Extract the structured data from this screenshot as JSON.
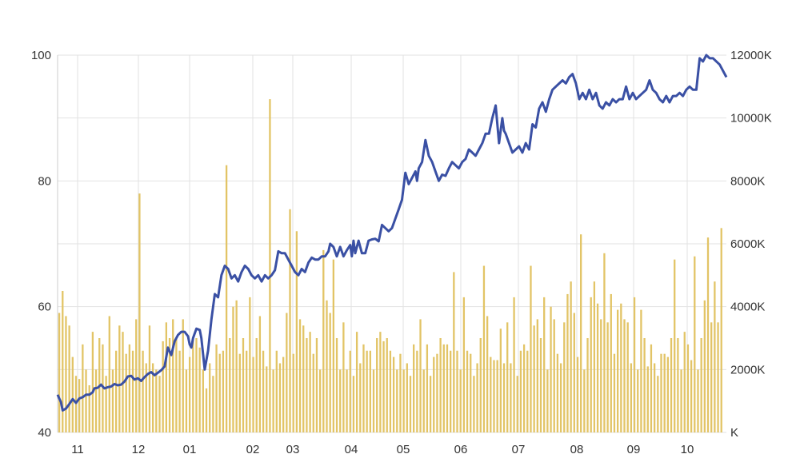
{
  "chart_data": {
    "type": "bar+line",
    "title": "",
    "xlabel": "",
    "x_ticks": [
      "11",
      "12",
      "01",
      "02",
      "03",
      "04",
      "05",
      "06",
      "07",
      "08",
      "09",
      "10"
    ],
    "y_left": {
      "ticks": [
        "40",
        "60",
        "80",
        "100"
      ],
      "range": [
        40,
        100
      ]
    },
    "y_right": {
      "ticks": [
        "K",
        "2000K",
        "4000K",
        "6000K",
        "8000K",
        "10000K",
        "12000K"
      ],
      "range": [
        0,
        12000
      ]
    },
    "grid": true,
    "colors": {
      "line": "#3a50a4",
      "bar": "#e2c466",
      "grid": "#e2e2e2"
    },
    "series": [
      {
        "kind": "line",
        "axis": "left",
        "points": [
          [
            0.0,
            46.0
          ],
          [
            0.1,
            44.8
          ],
          [
            0.15,
            43.5
          ],
          [
            0.25,
            43.8
          ],
          [
            0.35,
            44.5
          ],
          [
            0.45,
            45.3
          ],
          [
            0.55,
            44.7
          ],
          [
            0.65,
            45.4
          ],
          [
            0.75,
            45.6
          ],
          [
            0.85,
            46.0
          ],
          [
            0.95,
            46.0
          ],
          [
            1.05,
            46.4
          ],
          [
            1.1,
            47.0
          ],
          [
            1.2,
            47.1
          ],
          [
            1.3,
            47.6
          ],
          [
            1.4,
            47.0
          ],
          [
            1.5,
            47.2
          ],
          [
            1.6,
            47.3
          ],
          [
            1.7,
            47.7
          ],
          [
            1.8,
            47.5
          ],
          [
            1.9,
            47.6
          ],
          [
            2.0,
            48.1
          ],
          [
            2.1,
            48.9
          ],
          [
            2.2,
            49.0
          ],
          [
            2.3,
            48.4
          ],
          [
            2.4,
            48.6
          ],
          [
            2.5,
            48.2
          ],
          [
            2.6,
            48.8
          ],
          [
            2.7,
            49.3
          ],
          [
            2.8,
            49.6
          ],
          [
            2.9,
            49.1
          ],
          [
            3.0,
            49.5
          ],
          [
            3.1,
            49.9
          ],
          [
            3.2,
            50.5
          ],
          [
            3.3,
            53.5
          ],
          [
            3.4,
            52.3
          ],
          [
            3.5,
            54.5
          ],
          [
            3.6,
            55.5
          ],
          [
            3.7,
            56.0
          ],
          [
            3.8,
            56.0
          ],
          [
            3.9,
            55.3
          ],
          [
            3.95,
            54.0
          ],
          [
            4.0,
            53.5
          ],
          [
            4.05,
            55.0
          ],
          [
            4.15,
            56.5
          ],
          [
            4.25,
            56.3
          ],
          [
            4.3,
            55.0
          ],
          [
            4.4,
            50.0
          ],
          [
            4.5,
            53.0
          ],
          [
            4.6,
            58.0
          ],
          [
            4.7,
            62.0
          ],
          [
            4.8,
            61.5
          ],
          [
            4.9,
            65.0
          ],
          [
            5.0,
            66.5
          ],
          [
            5.1,
            66.0
          ],
          [
            5.2,
            64.5
          ],
          [
            5.3,
            65.0
          ],
          [
            5.4,
            64.0
          ],
          [
            5.5,
            65.5
          ],
          [
            5.6,
            66.5
          ],
          [
            5.7,
            66.0
          ],
          [
            5.8,
            65.0
          ],
          [
            5.9,
            64.5
          ],
          [
            6.0,
            65.0
          ],
          [
            6.1,
            64.0
          ],
          [
            6.2,
            65.0
          ],
          [
            6.3,
            64.5
          ],
          [
            6.4,
            65.0
          ],
          [
            6.5,
            65.8
          ],
          [
            6.6,
            68.8
          ],
          [
            6.7,
            68.5
          ],
          [
            6.8,
            68.5
          ],
          [
            6.9,
            67.5
          ],
          [
            7.0,
            66.5
          ],
          [
            7.1,
            65.5
          ],
          [
            7.2,
            65.0
          ],
          [
            7.3,
            66.0
          ],
          [
            7.4,
            65.5
          ],
          [
            7.5,
            67.0
          ],
          [
            7.6,
            67.8
          ],
          [
            7.7,
            67.5
          ],
          [
            7.8,
            67.5
          ],
          [
            7.9,
            68.0
          ],
          [
            8.0,
            68.0
          ],
          [
            8.1,
            68.8
          ],
          [
            8.15,
            70.0
          ],
          [
            8.25,
            69.5
          ],
          [
            8.35,
            68.0
          ],
          [
            8.45,
            69.5
          ],
          [
            8.55,
            68.0
          ],
          [
            8.65,
            69.0
          ],
          [
            8.75,
            69.8
          ],
          [
            8.8,
            68.0
          ],
          [
            8.85,
            70.5
          ],
          [
            8.9,
            68.5
          ],
          [
            9.0,
            70.5
          ],
          [
            9.1,
            68.5
          ],
          [
            9.2,
            68.5
          ],
          [
            9.3,
            70.5
          ],
          [
            9.4,
            70.7
          ],
          [
            9.5,
            70.8
          ],
          [
            9.6,
            70.4
          ],
          [
            9.7,
            73.0
          ],
          [
            9.8,
            72.5
          ],
          [
            9.9,
            72.0
          ],
          [
            10.0,
            72.5
          ],
          [
            10.1,
            74.0
          ],
          [
            10.2,
            75.5
          ],
          [
            10.3,
            77.0
          ],
          [
            10.4,
            81.3
          ],
          [
            10.5,
            79.5
          ],
          [
            10.6,
            80.5
          ],
          [
            10.7,
            81.5
          ],
          [
            10.75,
            80.0
          ],
          [
            10.8,
            82.0
          ],
          [
            10.9,
            83.0
          ],
          [
            11.0,
            86.5
          ],
          [
            11.1,
            84.0
          ],
          [
            11.2,
            83.0
          ],
          [
            11.3,
            81.5
          ],
          [
            11.4,
            80.0
          ],
          [
            11.5,
            81.0
          ],
          [
            11.6,
            80.8
          ],
          [
            11.7,
            82.0
          ],
          [
            11.8,
            83.0
          ],
          [
            11.9,
            82.5
          ],
          [
            12.0,
            82.0
          ],
          [
            12.1,
            83.0
          ],
          [
            12.2,
            83.5
          ],
          [
            12.3,
            85.0
          ],
          [
            12.4,
            84.5
          ],
          [
            12.5,
            84.0
          ],
          [
            12.6,
            85.0
          ],
          [
            12.7,
            86.0
          ],
          [
            12.8,
            87.5
          ],
          [
            12.9,
            87.5
          ],
          [
            13.0,
            90.0
          ],
          [
            13.1,
            92.0
          ],
          [
            13.15,
            89.0
          ],
          [
            13.2,
            86.0
          ],
          [
            13.3,
            90.0
          ],
          [
            13.35,
            88.0
          ],
          [
            13.4,
            87.5
          ],
          [
            13.5,
            86.0
          ],
          [
            13.6,
            84.5
          ],
          [
            13.7,
            85.0
          ],
          [
            13.8,
            85.5
          ],
          [
            13.9,
            84.5
          ],
          [
            14.0,
            86.0
          ],
          [
            14.1,
            85.0
          ],
          [
            14.2,
            89.0
          ],
          [
            14.3,
            88.5
          ],
          [
            14.4,
            91.5
          ],
          [
            14.5,
            92.5
          ],
          [
            14.6,
            91.0
          ],
          [
            14.7,
            93.0
          ],
          [
            14.8,
            94.5
          ],
          [
            14.9,
            95.0
          ],
          [
            15.0,
            95.5
          ],
          [
            15.1,
            96.0
          ],
          [
            15.2,
            95.5
          ],
          [
            15.3,
            96.5
          ],
          [
            15.4,
            97.0
          ],
          [
            15.5,
            95.5
          ],
          [
            15.6,
            93.0
          ],
          [
            15.7,
            94.0
          ],
          [
            15.8,
            93.0
          ],
          [
            15.9,
            94.5
          ],
          [
            16.0,
            93.0
          ],
          [
            16.1,
            94.0
          ],
          [
            16.2,
            92.0
          ],
          [
            16.3,
            91.5
          ],
          [
            16.4,
            92.5
          ],
          [
            16.5,
            92.0
          ],
          [
            16.6,
            93.0
          ],
          [
            16.7,
            92.5
          ],
          [
            16.8,
            93.0
          ],
          [
            16.9,
            93.0
          ],
          [
            17.0,
            95.0
          ],
          [
            17.1,
            93.0
          ],
          [
            17.2,
            94.0
          ],
          [
            17.3,
            93.0
          ],
          [
            17.4,
            93.5
          ],
          [
            17.5,
            94.0
          ],
          [
            17.6,
            94.5
          ],
          [
            17.7,
            96.0
          ],
          [
            17.8,
            94.5
          ],
          [
            17.9,
            94.0
          ],
          [
            18.0,
            93.0
          ],
          [
            18.1,
            92.5
          ],
          [
            18.2,
            93.5
          ],
          [
            18.3,
            92.5
          ],
          [
            18.4,
            93.5
          ],
          [
            18.5,
            93.5
          ],
          [
            18.6,
            94.0
          ],
          [
            18.7,
            93.5
          ],
          [
            18.8,
            94.5
          ],
          [
            18.9,
            95.0
          ],
          [
            19.0,
            94.5
          ],
          [
            19.1,
            94.5
          ],
          [
            19.2,
            99.5
          ],
          [
            19.3,
            99.0
          ],
          [
            19.4,
            100.0
          ],
          [
            19.5,
            99.5
          ],
          [
            19.6,
            99.5
          ],
          [
            19.7,
            99.0
          ],
          [
            19.8,
            98.5
          ],
          [
            19.9,
            97.5
          ],
          [
            20.0,
            96.5
          ]
        ]
      },
      {
        "kind": "bar",
        "axis": "right",
        "x_start": 0.1,
        "x_step": 0.1,
        "bar_width_pct": 0.55,
        "values": [
          3800,
          4500,
          3700,
          3400,
          2400,
          1800,
          1700,
          2800,
          2000,
          1500,
          3200,
          2000,
          3000,
          2800,
          1800,
          3700,
          2000,
          2600,
          3400,
          3200,
          2500,
          2800,
          2600,
          3600,
          7600,
          2600,
          2200,
          3400,
          2200,
          2000,
          1800,
          2900,
          3500,
          3000,
          3600,
          3000,
          2600,
          3600,
          2000,
          2400,
          3000,
          3000,
          2700,
          2000,
          1400,
          2200,
          1800,
          2800,
          2500,
          2600,
          8500,
          3000,
          4000,
          4200,
          2500,
          3000,
          2600,
          4300,
          2400,
          3000,
          3700,
          2600,
          2100,
          10600,
          2000,
          2600,
          2200,
          2400,
          3800,
          7100,
          2500,
          6400,
          3600,
          3400,
          3000,
          3200,
          2500,
          3000,
          2000,
          5800,
          4200,
          3800,
          5500,
          3000,
          2000,
          3500,
          2000,
          2600,
          1800,
          3200,
          2200,
          2800,
          2600,
          2600,
          2000,
          3000,
          3200,
          2900,
          3000,
          2600,
          2400,
          2000,
          2500,
          2000,
          2200,
          1800,
          2800,
          2600,
          3600,
          2000,
          2800,
          1800,
          2400,
          2500,
          3000,
          2800,
          2800,
          2600,
          5100,
          2600,
          2000,
          4300,
          2600,
          2500,
          1800,
          2200,
          3000,
          5300,
          3700,
          2400,
          2300,
          2300,
          3300,
          2200,
          3500,
          2200,
          4300,
          1800,
          2600,
          2800,
          2600,
          5300,
          3400,
          3600,
          3000,
          4300,
          2000,
          4000,
          3600,
          2500,
          2200,
          3500,
          4400,
          4800,
          3800,
          2400,
          6300,
          2000,
          3000,
          4300,
          4800,
          4100,
          3600,
          5700,
          3500,
          4400,
          2500,
          3900,
          4100,
          3600,
          3500,
          2200,
          4300,
          2000,
          3900,
          3000,
          2100,
          2800,
          2200,
          1800,
          2500,
          2500,
          2400,
          3000,
          5500,
          3000,
          2000,
          3200,
          2800,
          2300,
          5600,
          2000,
          3000,
          4200,
          6200,
          3500,
          4800,
          3500,
          6500,
          2800,
          4000,
          3000,
          2300,
          7200,
          3000,
          2600,
          3800,
          3500,
          4100,
          2800,
          4000,
          2000,
          2600,
          2800,
          4400,
          5700,
          4400,
          3800,
          2800,
          3500,
          2500,
          3000,
          2500,
          2400,
          1800,
          2600,
          2000,
          2400,
          1800,
          2500,
          4500,
          3000,
          4500,
          4600,
          3800,
          6000,
          3400,
          5800,
          4000,
          4000,
          4100,
          4100,
          2800,
          4200,
          1800,
          4000,
          3000,
          3200,
          5000,
          1800,
          2200,
          2500,
          3500,
          2600,
          3200,
          2600,
          5600,
          2200,
          4700,
          2800,
          3000,
          2600,
          2200,
          3300,
          2600,
          2500,
          3000,
          2300,
          2200,
          3200,
          3600,
          2500,
          3000,
          3900,
          2400,
          2000,
          1900,
          2000,
          2400,
          2800,
          3800,
          2000,
          3000,
          2000,
          2600,
          3000,
          2400,
          2000,
          3800,
          2800,
          2000,
          3200,
          1500,
          2500,
          3100,
          2000,
          2000,
          2000,
          2700,
          3000,
          3200,
          3300,
          3000,
          1800,
          2800,
          2600,
          3300,
          3500,
          3100,
          1800,
          3400,
          3000,
          3500,
          1200,
          2000,
          3100,
          3000,
          3300,
          3500,
          2500,
          3000,
          3300,
          2800,
          4300,
          2200,
          2400,
          3200,
          2000,
          8700,
          2000,
          2500,
          3000,
          3000,
          5100,
          4000,
          2500,
          3000,
          1900,
          3300,
          2600,
          3300,
          2100,
          1800,
          2800,
          2700,
          3200,
          3400,
          2400,
          2300,
          2500,
          2400,
          3000
        ]
      }
    ]
  }
}
